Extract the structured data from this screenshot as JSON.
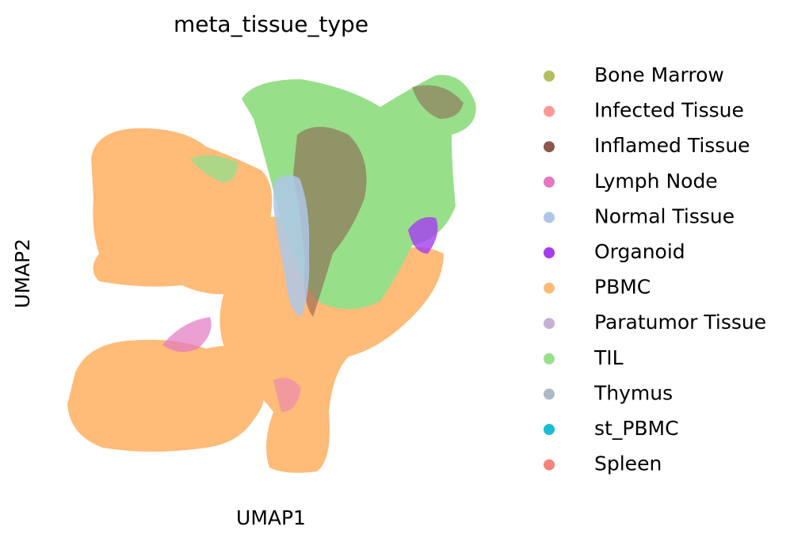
{
  "chart_data": {
    "type": "scatter",
    "title": "meta_tissue_type",
    "xlabel": "UMAP1",
    "ylabel": "UMAP2",
    "series": [
      {
        "name": "Bone Marrow",
        "color": "#b5bd61"
      },
      {
        "name": "Infected Tissue",
        "color": "#ff9896"
      },
      {
        "name": "Inflamed Tissue",
        "color": "#8c564b"
      },
      {
        "name": "Lymph Node",
        "color": "#e377c2"
      },
      {
        "name": "Normal Tissue",
        "color": "#aec7e8"
      },
      {
        "name": "Organoid",
        "color": "#a53cf0"
      },
      {
        "name": "PBMC",
        "color": "#ffbb78"
      },
      {
        "name": "Paratumor Tissue",
        "color": "#c5b0d5"
      },
      {
        "name": "TIL",
        "color": "#98df8a"
      },
      {
        "name": "Thymus",
        "color": "#adbac6"
      },
      {
        "name": "st_PBMC",
        "color": "#17becf"
      },
      {
        "name": "Spleen",
        "color": "#f88379"
      }
    ]
  }
}
